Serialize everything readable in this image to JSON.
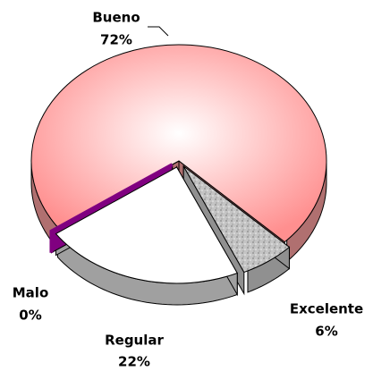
{
  "chart_data": {
    "type": "pie3d",
    "categories": [
      "Bueno",
      "Excelente",
      "Regular",
      "Malo"
    ],
    "values": [
      72,
      6,
      22,
      0
    ],
    "value_labels": [
      "72%",
      "6%",
      "22%",
      "0%"
    ],
    "colors": [
      "#ff9a9a",
      "#b8b8b8",
      "#ffffff",
      "#800080"
    ]
  }
}
